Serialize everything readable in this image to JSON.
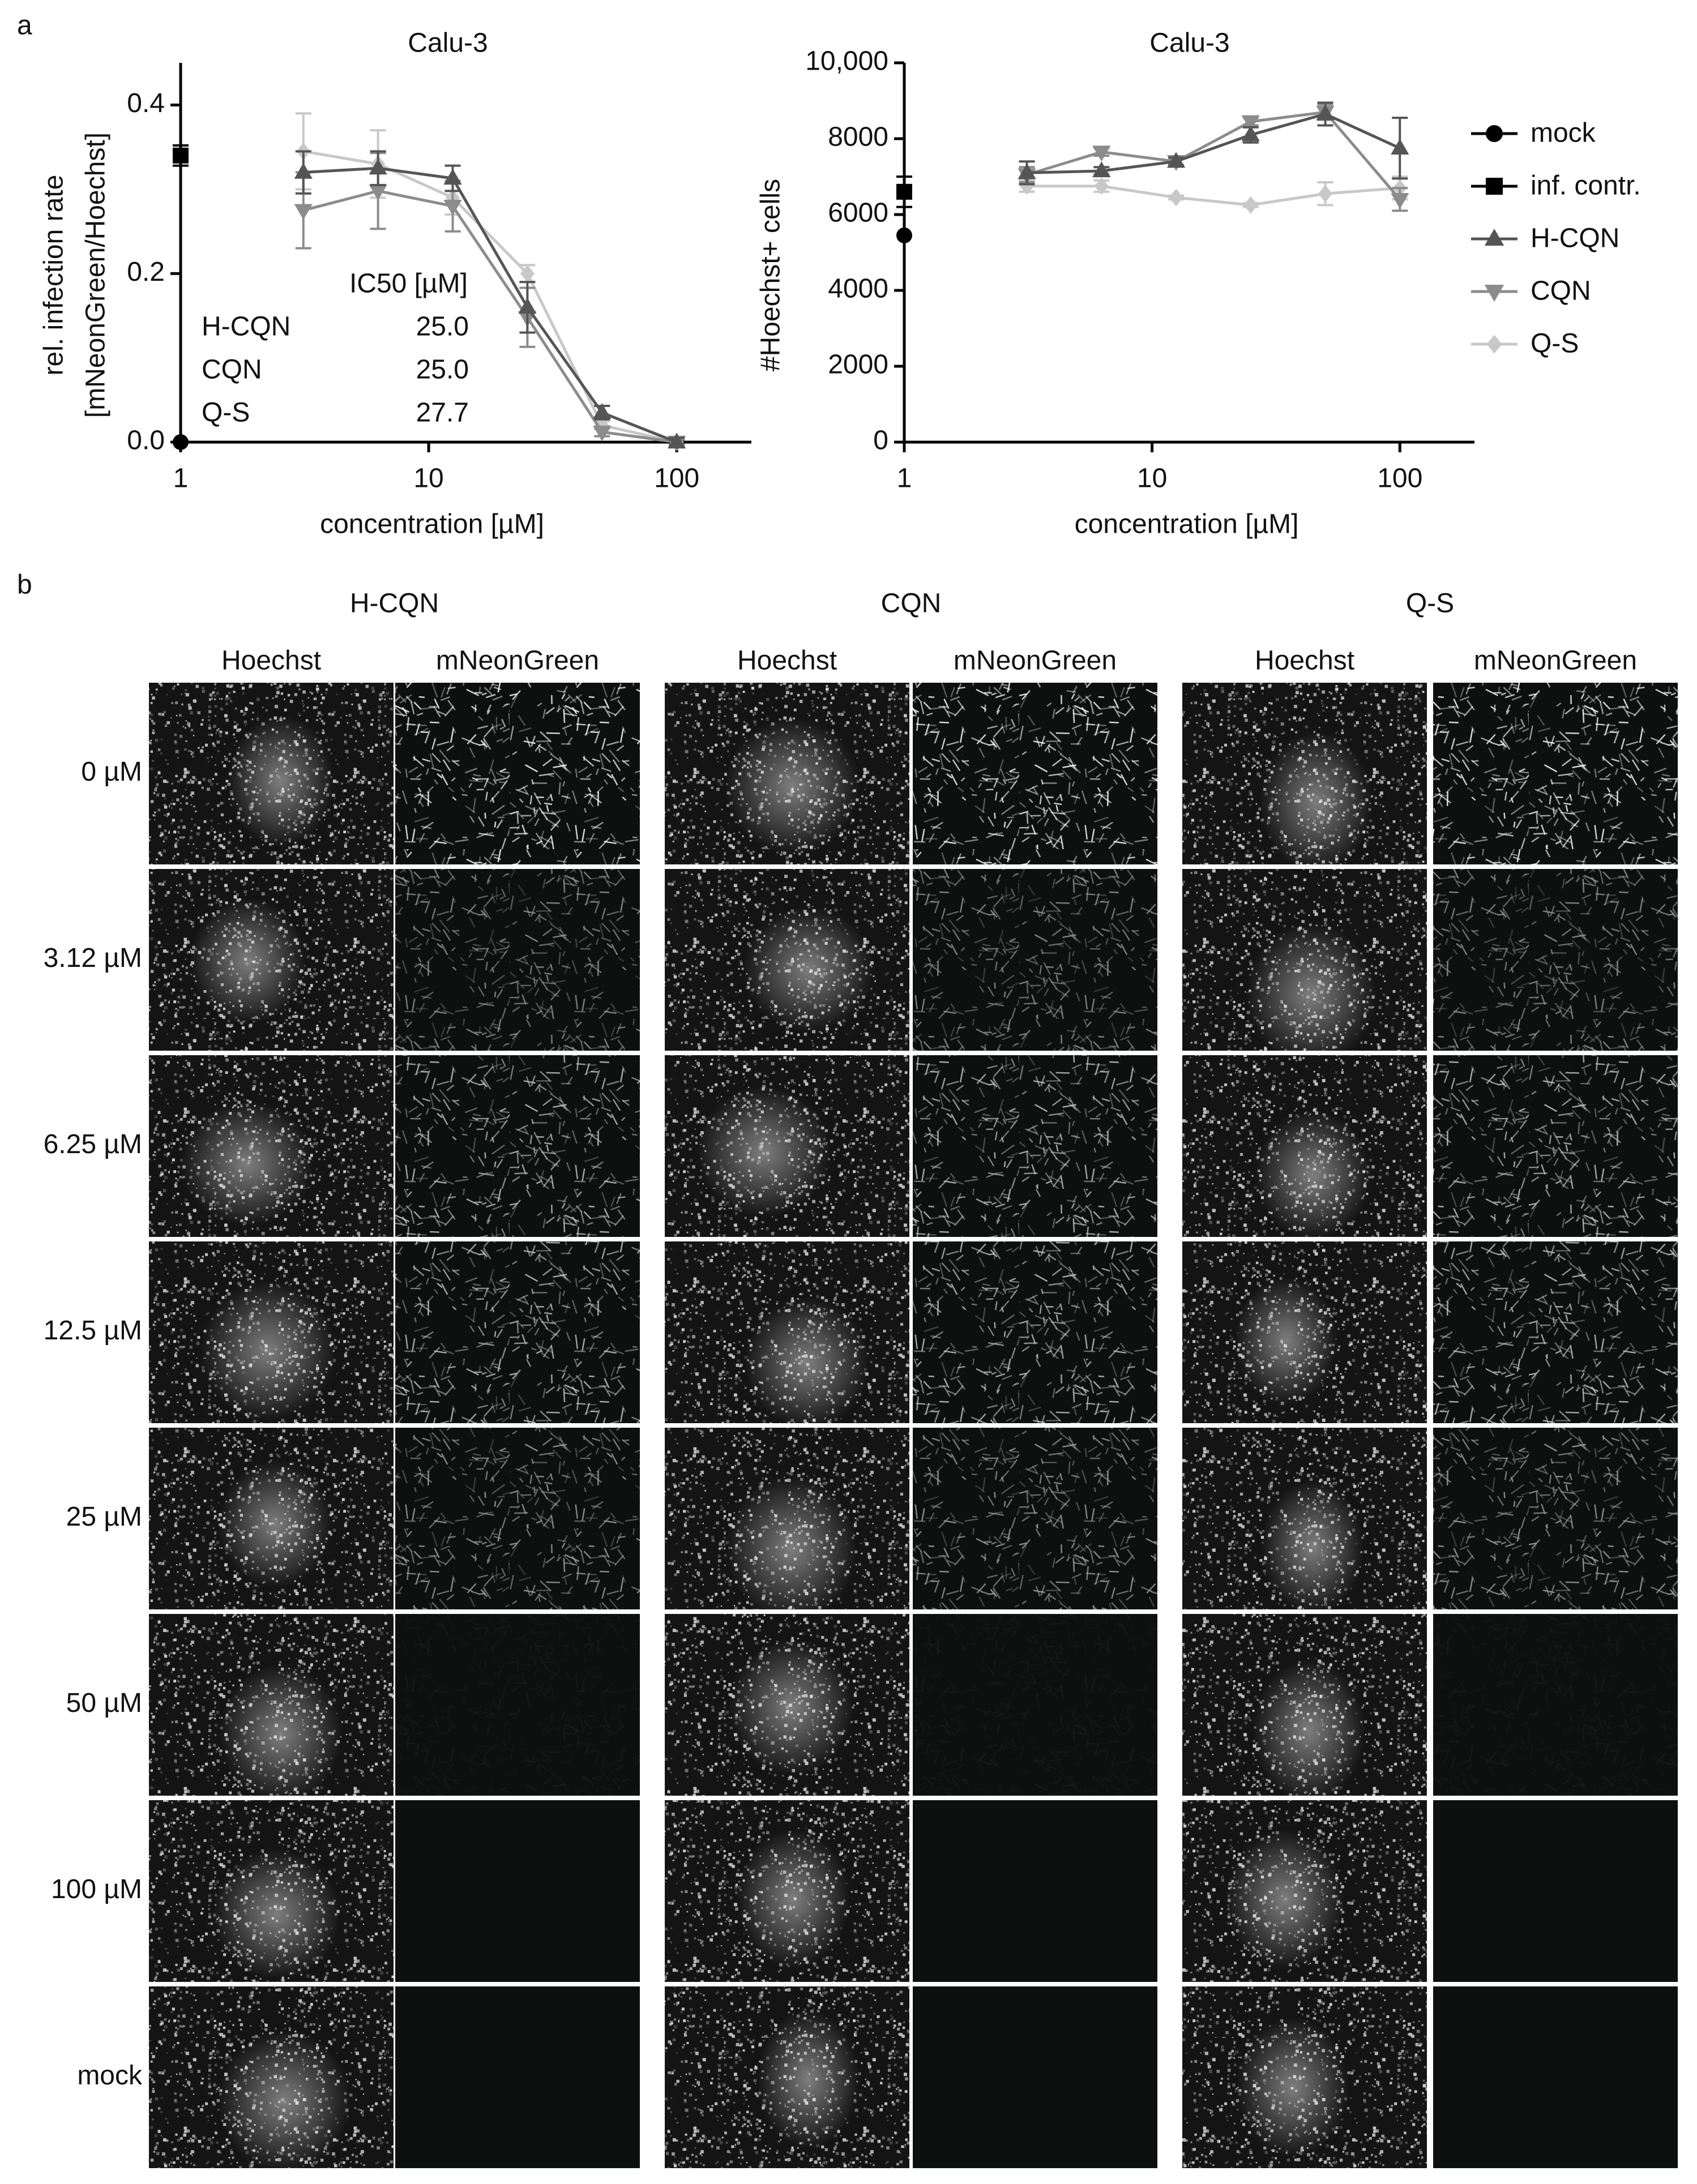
{
  "panel_labels": [
    "a",
    "b"
  ],
  "chart_data": [
    {
      "type": "line",
      "title": "Calu-3",
      "x_label": "concentration [µM]",
      "y_label": [
        "rel. infection rate",
        "[mNeonGreen/Hoechst]"
      ],
      "xscale": "log",
      "xlim": [
        1,
        200
      ],
      "xticks": [
        1,
        10,
        100
      ],
      "ylim": [
        0,
        0.45
      ],
      "yticks": [
        {
          "value": 0,
          "label": "0.0"
        },
        {
          "value": 0.2,
          "label": "0.2"
        },
        {
          "value": 0.4,
          "label": "0.4"
        }
      ],
      "series": [
        {
          "color": "#000000",
          "marker": "circle",
          "x": [
            1
          ],
          "values": [
            0
          ]
        },
        {
          "color": "#000000",
          "marker": "square",
          "x": [
            1
          ],
          "values": [
            0.34
          ],
          "errors": [
            0.012
          ]
        },
        {
          "color": "#555555",
          "marker": "triangle-up",
          "x": [
            3.125,
            6.25,
            12.5,
            25,
            50,
            100
          ],
          "values": [
            0.32,
            0.325,
            0.313,
            0.16,
            0.035,
            0.0
          ],
          "errors": [
            0.025,
            0.02,
            0.015,
            0.03,
            0.008,
            0.005
          ]
        },
        {
          "color": "#8c8c8c",
          "marker": "triangle-down",
          "x": [
            3.125,
            6.25,
            12.5,
            25,
            50,
            100
          ],
          "values": [
            0.275,
            0.298,
            0.28,
            0.148,
            0.012,
            0.0
          ],
          "errors": [
            0.045,
            0.045,
            0.03,
            0.035,
            0.005,
            0.003
          ]
        },
        {
          "color": "#c8c8c8",
          "marker": "diamond",
          "x": [
            3.125,
            6.25,
            12.5,
            25,
            50,
            100
          ],
          "values": [
            0.345,
            0.33,
            0.29,
            0.2,
            0.02,
            0.0
          ],
          "errors": [
            0.045,
            0.04,
            0.02,
            0.01,
            0.005,
            0.003
          ]
        }
      ],
      "table": {
        "header": "IC50 [µM]",
        "rows": [
          [
            "H-CQN",
            "25.0"
          ],
          [
            "CQN",
            "25.0"
          ],
          [
            "Q-S",
            "27.7"
          ]
        ]
      }
    },
    {
      "type": "line",
      "title": "Calu-3",
      "x_label": "concentration [µM]",
      "y_label": [
        "#Hoechst+ cells"
      ],
      "xscale": "log",
      "xlim": [
        1,
        200
      ],
      "xticks": [
        1,
        10,
        100
      ],
      "ylim": [
        0,
        10000
      ],
      "yticks": [
        0,
        2000,
        4000,
        6000,
        8000,
        {
          "value": 10000,
          "label": "10,000"
        }
      ],
      "legend": "right",
      "series": [
        {
          "name": "mock",
          "color": "#000000",
          "marker": "circle",
          "x": [
            1
          ],
          "values": [
            5450
          ]
        },
        {
          "name": "inf. contr.",
          "color": "#000000",
          "marker": "square",
          "x": [
            1
          ],
          "values": [
            6600
          ],
          "errors": [
            400
          ]
        },
        {
          "name": "H-CQN",
          "color": "#555555",
          "marker": "triangle-up",
          "x": [
            3.125,
            6.25,
            12.5,
            25,
            50,
            100
          ],
          "values": [
            7100,
            7150,
            7400,
            8100,
            8650,
            7750
          ],
          "errors": [
            300,
            100,
            100,
            200,
            300,
            800
          ]
        },
        {
          "name": "CQN",
          "color": "#8c8c8c",
          "marker": "triangle-down",
          "x": [
            3.125,
            6.25,
            12.5,
            25,
            50,
            100
          ],
          "values": [
            7050,
            7650,
            7400,
            8450,
            8700,
            6400
          ],
          "errors": [
            200,
            100,
            100,
            100,
            200,
            300
          ]
        },
        {
          "name": "Q-S",
          "color": "#c8c8c8",
          "marker": "diamond",
          "x": [
            3.125,
            6.25,
            12.5,
            25,
            50,
            100
          ],
          "values": [
            6750,
            6750,
            6450,
            6250,
            6550,
            6700
          ],
          "errors": [
            150,
            150,
            50,
            50,
            300,
            300
          ]
        }
      ]
    }
  ],
  "micrographs": {
    "compounds": [
      "H-CQN",
      "CQN",
      "Q-S"
    ],
    "channels": [
      "Hoechst",
      "mNeonGreen"
    ],
    "conditions": [
      "0 µM",
      "3.12 µM",
      "6.25 µM",
      "12.5 µM",
      "25 µM",
      "50 µM",
      "100 µM",
      "mock"
    ]
  }
}
